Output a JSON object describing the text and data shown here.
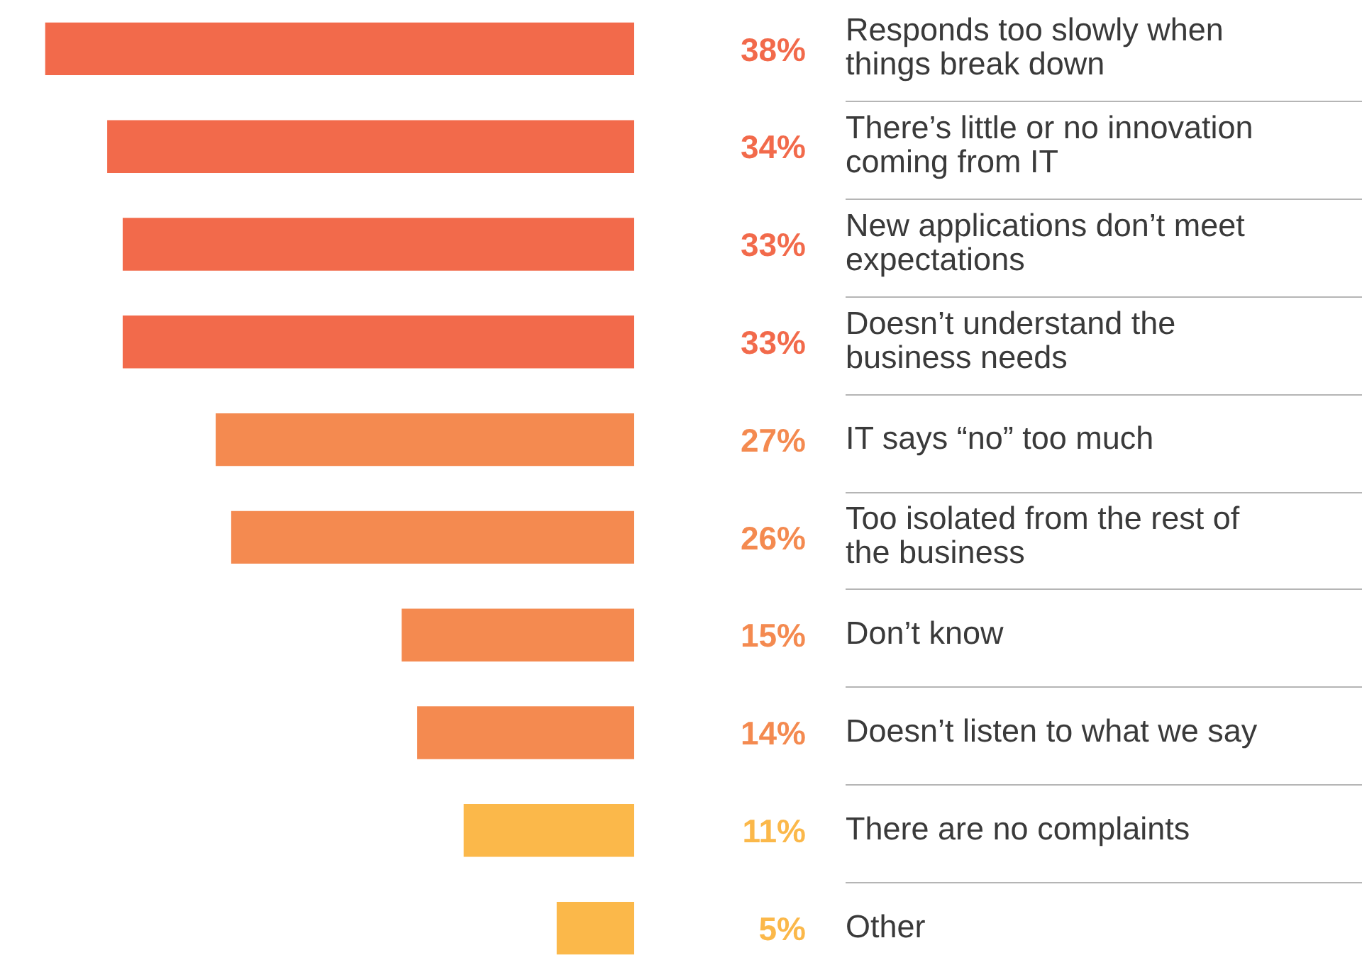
{
  "chart_data": {
    "type": "bar",
    "orientation": "horizontal",
    "tick_labels": false,
    "value_labels": [
      "38%",
      "34%",
      "33%",
      "33%",
      "27%",
      "26%",
      "15%",
      "14%",
      "11%",
      "5%"
    ],
    "categories": [
      "Responds too slowly when things break down",
      "There’s little or no innovation coming from IT",
      "New applications don’t meet expectations",
      "Doesn’t understand the business needs",
      "IT says “no” too much",
      "Too isolated from the rest of the business",
      "Don’t know",
      "Doesn’t listen to what we say",
      "There are no complaints",
      "Other"
    ],
    "values": [
      38,
      34,
      33,
      33,
      27,
      26,
      15,
      14,
      11,
      5
    ],
    "colors": [
      "#f26a4b",
      "#f26a4b",
      "#f26a4b",
      "#f26a4b",
      "#f48a50",
      "#f48a50",
      "#f48a50",
      "#f48a50",
      "#fbb84a",
      "#fbb84a"
    ]
  }
}
